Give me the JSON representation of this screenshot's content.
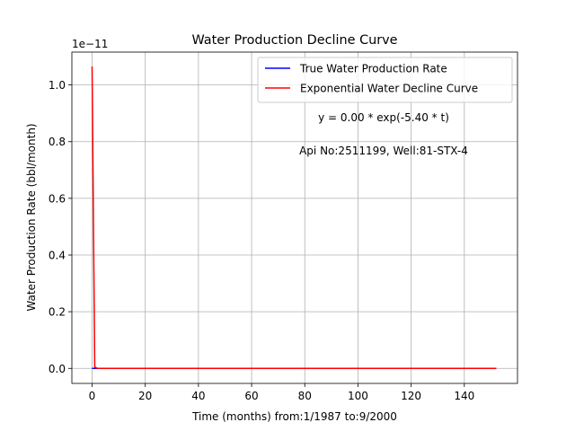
{
  "chart_data": {
    "type": "line",
    "title": "Water Production Decline Curve",
    "xlabel": "Time (months) from:1/1987 to:9/2000",
    "ylabel": "Water Production Rate (bbl/month)",
    "y_offset_label": "1e−11",
    "xlim": [
      -7.6,
      160
    ],
    "ylim": [
      -0.053,
      1.116
    ],
    "x_ticks": [
      0,
      20,
      40,
      60,
      80,
      100,
      120,
      140
    ],
    "x_tick_labels": [
      "0",
      "20",
      "40",
      "60",
      "80",
      "100",
      "120",
      "140"
    ],
    "y_ticks": [
      0.0,
      0.2,
      0.4,
      0.6,
      0.8,
      1.0
    ],
    "y_tick_labels": [
      "0.0",
      "0.2",
      "0.4",
      "0.6",
      "0.8",
      "1.0"
    ],
    "grid": true,
    "legend_position": "top-right",
    "series": [
      {
        "name": "True Water Production Rate",
        "color": "#0000ff",
        "x": [
          0,
          1,
          2,
          10,
          50,
          100,
          152
        ],
        "y": [
          0,
          0,
          0,
          0,
          0,
          0,
          0
        ]
      },
      {
        "name": "Exponential Water Decline Curve",
        "color": "#ff0000",
        "x": [
          0,
          1,
          2,
          10,
          50,
          100,
          152
        ],
        "y": [
          1.065,
          0.005,
          0.0,
          0.0,
          0.0,
          0.0,
          0.0
        ]
      }
    ],
    "annotations": [
      "y = 0.00 * exp(-5.40 * t)",
      "Api No:2511199, Well:81-STX-4"
    ]
  }
}
